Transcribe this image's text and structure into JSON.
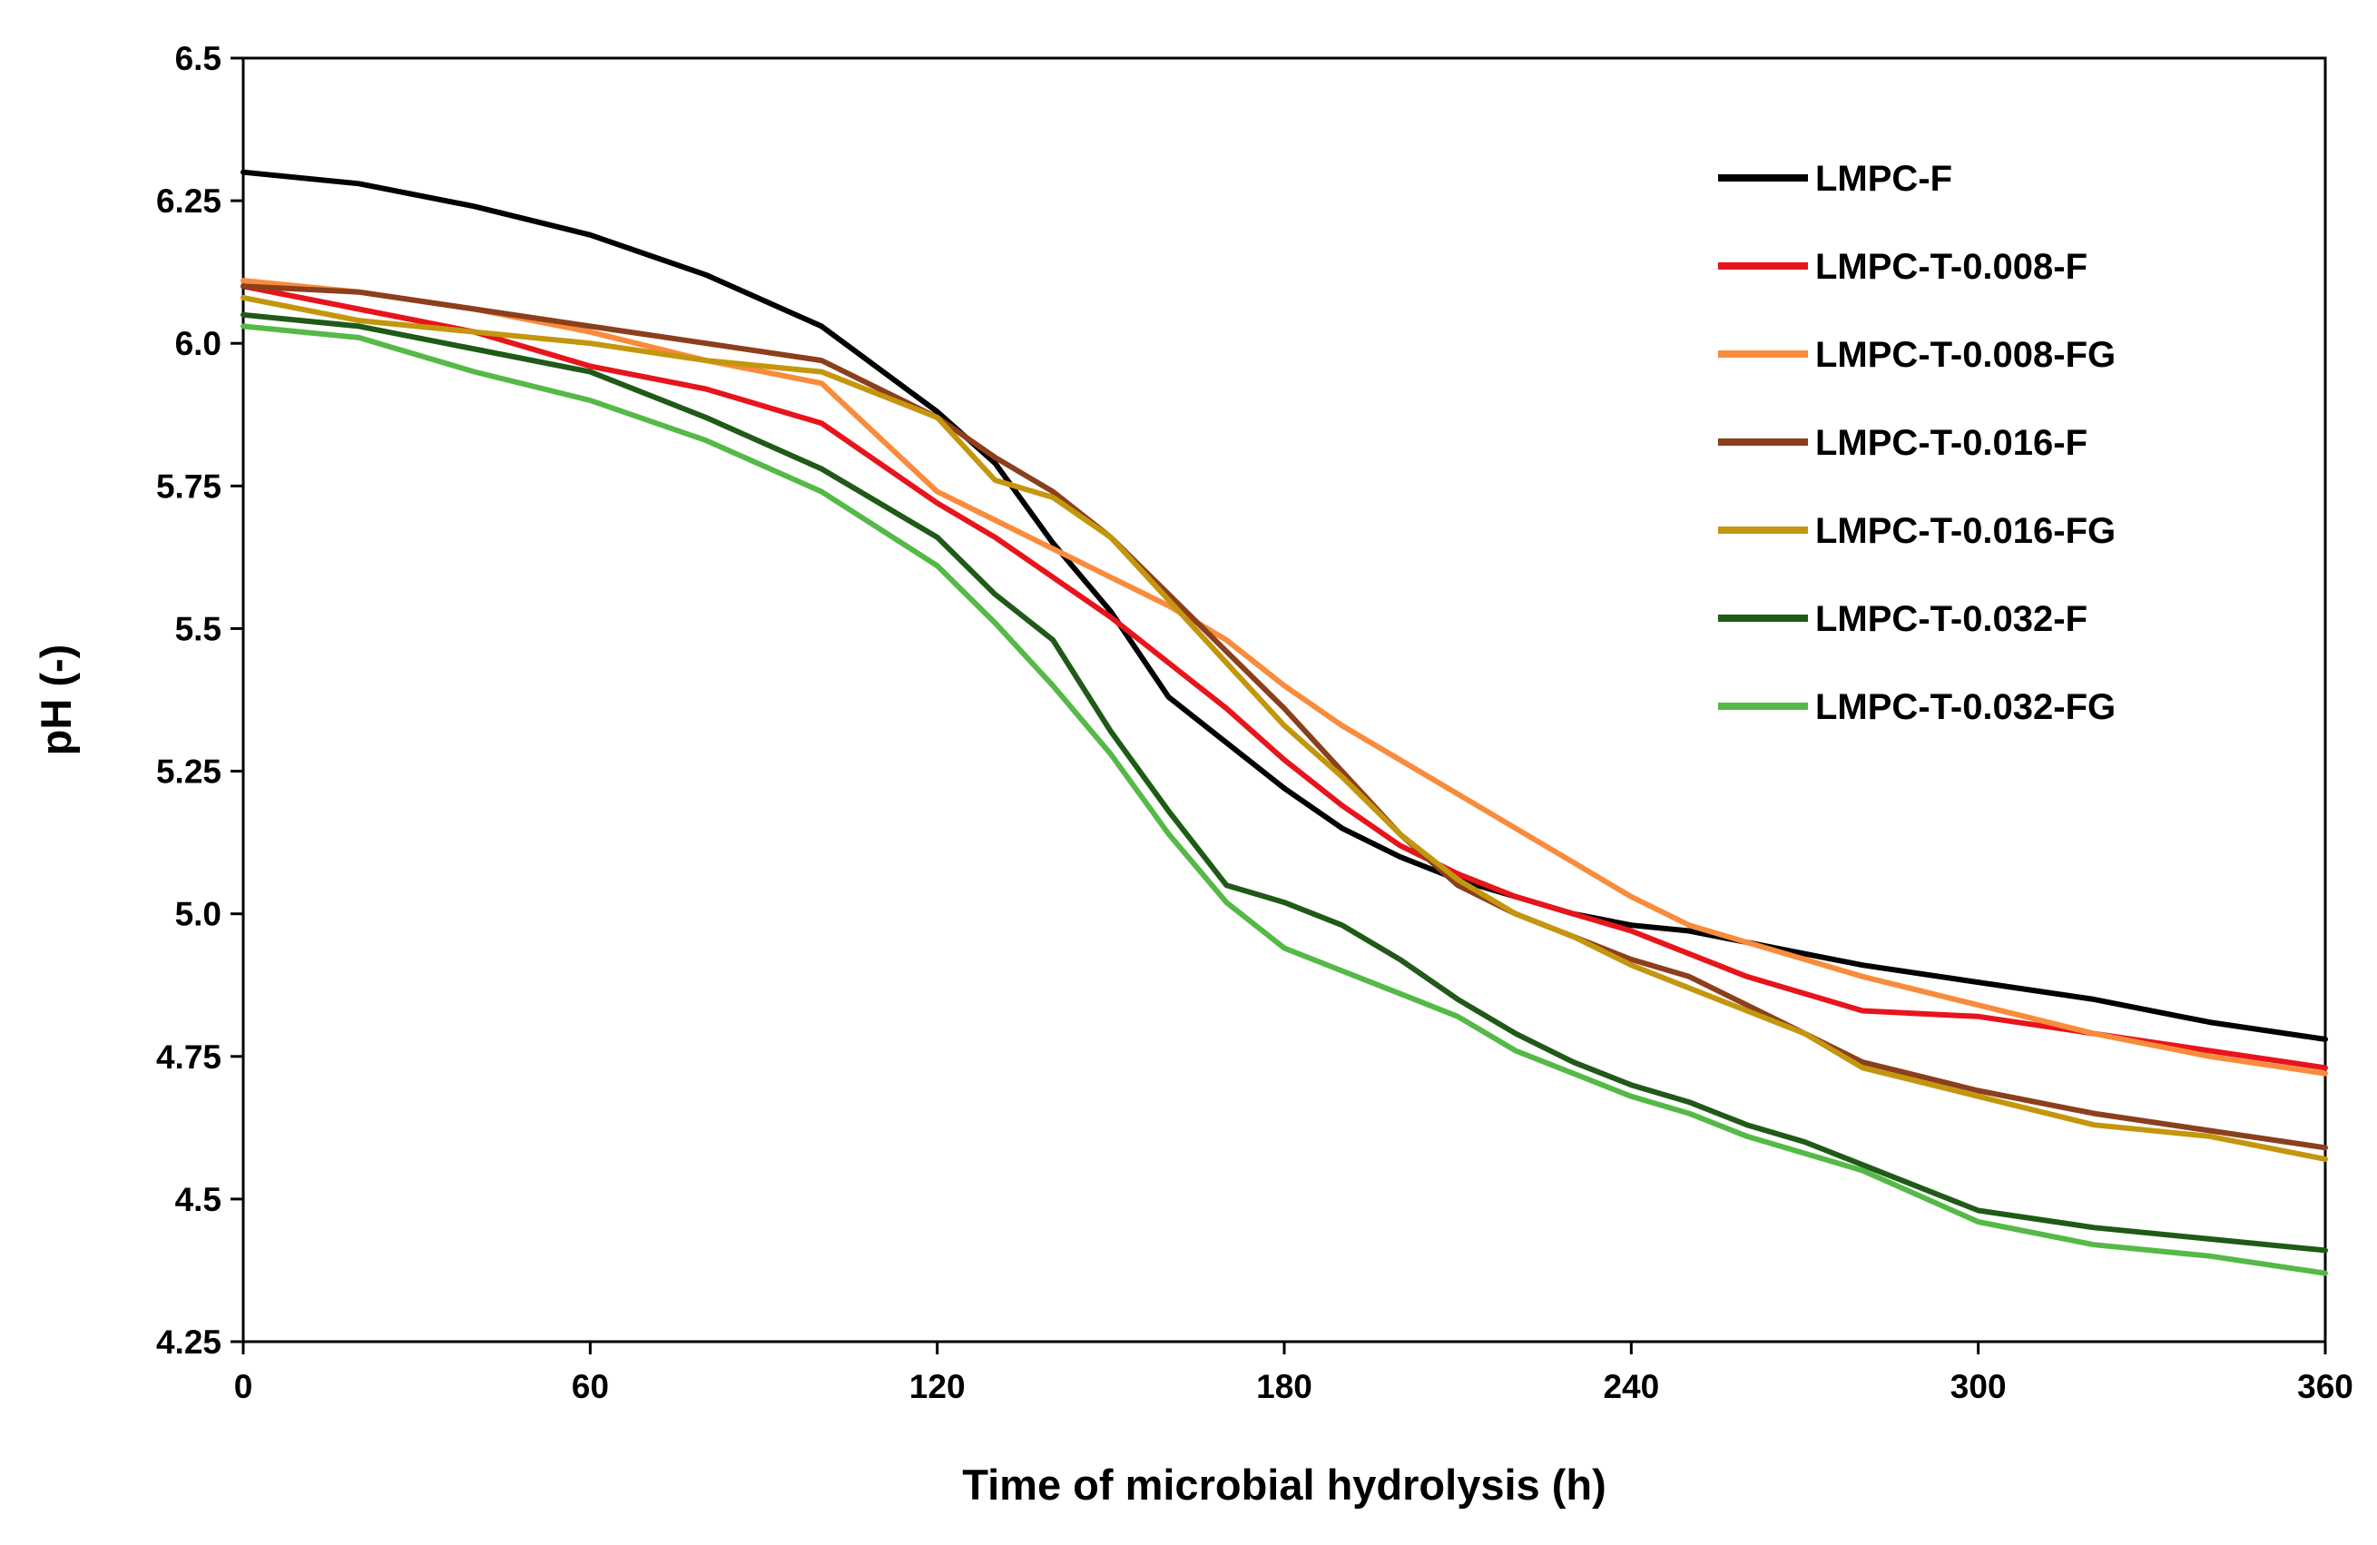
{
  "chart_data": {
    "type": "line",
    "title": "",
    "xlabel": "Time of microbial hydrolysis (h)",
    "ylabel": "pH (-)",
    "xlim": [
      0,
      360
    ],
    "ylim": [
      4.25,
      6.5
    ],
    "x_ticks": [
      0,
      60,
      120,
      180,
      240,
      300,
      360
    ],
    "x_tick_labels": [
      "0",
      "60",
      "120",
      "180",
      "240",
      "300",
      "360"
    ],
    "y_ticks": [
      4.25,
      4.5,
      4.75,
      5.0,
      5.25,
      5.5,
      5.75,
      6.0,
      6.25,
      6.5
    ],
    "y_tick_labels": [
      "4.25",
      "4.5",
      "4.75",
      "5.0",
      "5.25",
      "5.5",
      "5.75",
      "6.0",
      "6.25",
      "6.5"
    ],
    "grid": false,
    "legend_position": "top-right",
    "x": [
      0,
      20,
      40,
      60,
      80,
      100,
      120,
      130,
      140,
      150,
      160,
      170,
      180,
      190,
      200,
      210,
      220,
      230,
      240,
      250,
      260,
      270,
      280,
      300,
      320,
      340,
      360
    ],
    "series": [
      {
        "name": "LMPC-F",
        "color": "#000000",
        "values": [
          6.3,
          6.28,
          6.24,
          6.19,
          6.12,
          6.03,
          5.88,
          5.79,
          5.65,
          5.53,
          5.38,
          5.3,
          5.22,
          5.15,
          5.1,
          5.06,
          5.03,
          5.0,
          4.98,
          4.97,
          4.95,
          4.93,
          4.91,
          4.88,
          4.85,
          4.81,
          4.78
        ]
      },
      {
        "name": "LMPC-T-0.008-F",
        "color": "#e8141c",
        "values": [
          6.1,
          6.06,
          6.02,
          5.96,
          5.92,
          5.86,
          5.72,
          5.66,
          5.59,
          5.52,
          5.44,
          5.36,
          5.27,
          5.19,
          5.12,
          5.07,
          5.03,
          5.0,
          4.97,
          4.93,
          4.89,
          4.86,
          4.83,
          4.82,
          4.79,
          4.76,
          4.73
        ]
      },
      {
        "name": "LMPC-T-0.008-FG",
        "color": "#f98b3c",
        "values": [
          6.11,
          6.09,
          6.06,
          6.02,
          5.97,
          5.93,
          5.74,
          5.69,
          5.64,
          5.59,
          5.54,
          5.48,
          5.4,
          5.33,
          5.27,
          5.21,
          5.15,
          5.09,
          5.03,
          4.98,
          4.95,
          4.92,
          4.89,
          4.84,
          4.79,
          4.75,
          4.72
        ]
      },
      {
        "name": "LMPC-T-0.016-F",
        "color": "#8b3f1c",
        "values": [
          6.1,
          6.09,
          6.06,
          6.03,
          6.0,
          5.97,
          5.87,
          5.8,
          5.74,
          5.66,
          5.56,
          5.46,
          5.36,
          5.25,
          5.14,
          5.05,
          5.0,
          4.96,
          4.92,
          4.89,
          4.84,
          4.79,
          4.74,
          4.69,
          4.65,
          4.62,
          4.59
        ]
      },
      {
        "name": "LMPC-T-0.016-FG",
        "color": "#c4960e",
        "values": [
          6.08,
          6.04,
          6.02,
          6.0,
          5.97,
          5.95,
          5.87,
          5.76,
          5.73,
          5.66,
          5.55,
          5.44,
          5.33,
          5.24,
          5.14,
          5.06,
          5.0,
          4.96,
          4.91,
          4.87,
          4.83,
          4.79,
          4.73,
          4.68,
          4.63,
          4.61,
          4.57
        ]
      },
      {
        "name": "LMPC-T-0.032-F",
        "color": "#1f5a17",
        "values": [
          6.05,
          6.03,
          5.99,
          5.95,
          5.87,
          5.78,
          5.66,
          5.56,
          5.48,
          5.32,
          5.18,
          5.05,
          5.02,
          4.98,
          4.92,
          4.85,
          4.79,
          4.74,
          4.7,
          4.67,
          4.63,
          4.6,
          4.56,
          4.48,
          4.45,
          4.43,
          4.41
        ]
      },
      {
        "name": "LMPC-T-0.032-FG",
        "color": "#55b947",
        "values": [
          6.03,
          6.01,
          5.95,
          5.9,
          5.83,
          5.74,
          5.61,
          5.51,
          5.4,
          5.28,
          5.14,
          5.02,
          4.94,
          4.9,
          4.86,
          4.82,
          4.76,
          4.72,
          4.68,
          4.65,
          4.61,
          4.58,
          4.55,
          4.46,
          4.42,
          4.4,
          4.37
        ]
      }
    ]
  }
}
